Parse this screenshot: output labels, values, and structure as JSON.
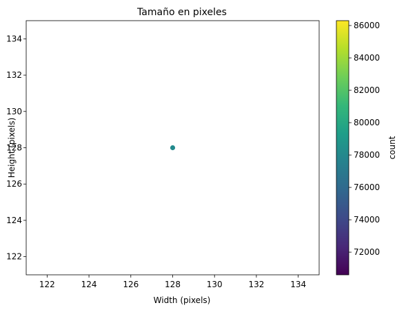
{
  "chart_data": {
    "type": "scatter",
    "title": "Tamaño en pixeles",
    "xlabel": "Width (pixels)",
    "ylabel": "Height (pixels)",
    "xlim": [
      121,
      135
    ],
    "ylim": [
      121,
      135
    ],
    "xticks": [
      122,
      124,
      126,
      128,
      130,
      132,
      134
    ],
    "yticks": [
      122,
      124,
      126,
      128,
      130,
      132,
      134
    ],
    "points": [
      {
        "x": 128,
        "y": 128,
        "count": 78500
      }
    ],
    "grid": false,
    "colorbar": {
      "label": "count",
      "colormap": "viridis",
      "range": [
        70600,
        86300
      ],
      "ticks": [
        72000,
        74000,
        76000,
        78000,
        80000,
        82000,
        84000,
        86000
      ]
    },
    "colors": {
      "point": "#238a8d",
      "viridis": [
        "#440154",
        "#482878",
        "#3e4a89",
        "#31688e",
        "#26828e",
        "#1f9e89",
        "#35b779",
        "#6ece58",
        "#b5de2b",
        "#fde725"
      ]
    }
  }
}
